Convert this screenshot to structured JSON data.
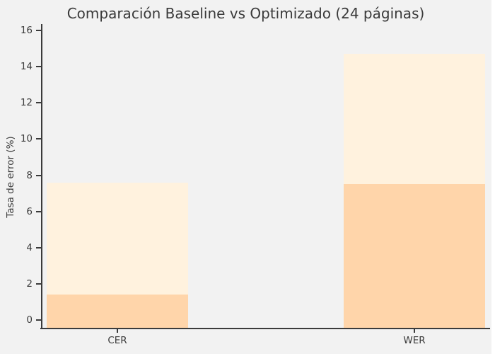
{
  "figure": {
    "background_color": "#F2F2F2",
    "axis_color": "#3B3B3B",
    "text_color": "#3A3A3A"
  },
  "chart_data": {
    "type": "bar",
    "title": "Comparación Baseline vs Optimizado (24 páginas)",
    "ylabel": "Tasa de error (%)",
    "xlabel": "",
    "categories": [
      "CER",
      "WER"
    ],
    "series": [
      {
        "name": "Baseline",
        "values": [
          7.6,
          14.7
        ],
        "color": "#FFF2DE"
      },
      {
        "name": "Optimizado",
        "values": [
          1.4,
          7.5
        ],
        "color": "#FFD5AA"
      }
    ],
    "bar_style": "overlapping",
    "yticks": [
      0,
      2,
      4,
      6,
      8,
      10,
      12,
      14,
      16
    ],
    "ylim": [
      0,
      16.3
    ],
    "grid": false,
    "legend": "none"
  }
}
